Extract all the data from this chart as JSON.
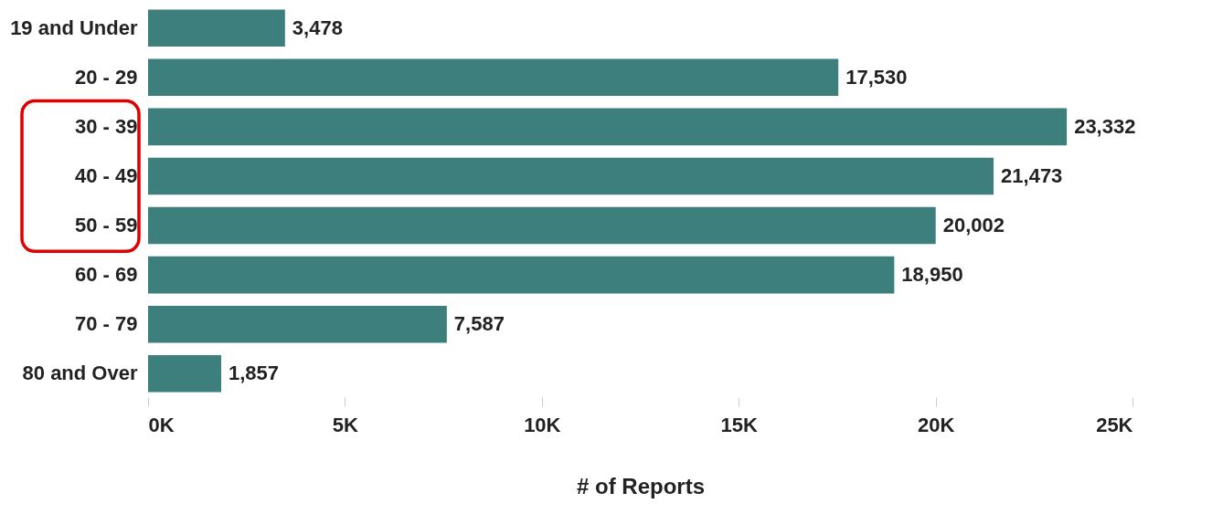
{
  "chart_data": {
    "type": "bar",
    "orientation": "horizontal",
    "xlabel": "# of Reports",
    "categories": [
      "19 and Under",
      "20 - 29",
      "30 - 39",
      "40 - 49",
      "50 - 59",
      "60 - 69",
      "70 - 79",
      "80 and Over"
    ],
    "values": [
      3478,
      17530,
      23332,
      21473,
      20002,
      18950,
      7587,
      1857
    ],
    "value_labels": [
      "3,478",
      "17,530",
      "23,332",
      "21,473",
      "20,002",
      "18,950",
      "7,587",
      "1,857"
    ],
    "color": "#3d7f7d",
    "xlim": [
      0,
      25000
    ],
    "xticks": [
      {
        "value": 0,
        "label": "0K"
      },
      {
        "value": 5000,
        "label": "5K"
      },
      {
        "value": 10000,
        "label": "10K"
      },
      {
        "value": 15000,
        "label": "15K"
      },
      {
        "value": 20000,
        "label": "20K"
      },
      {
        "value": 25000,
        "label": "25K"
      }
    ],
    "grid": false
  }
}
